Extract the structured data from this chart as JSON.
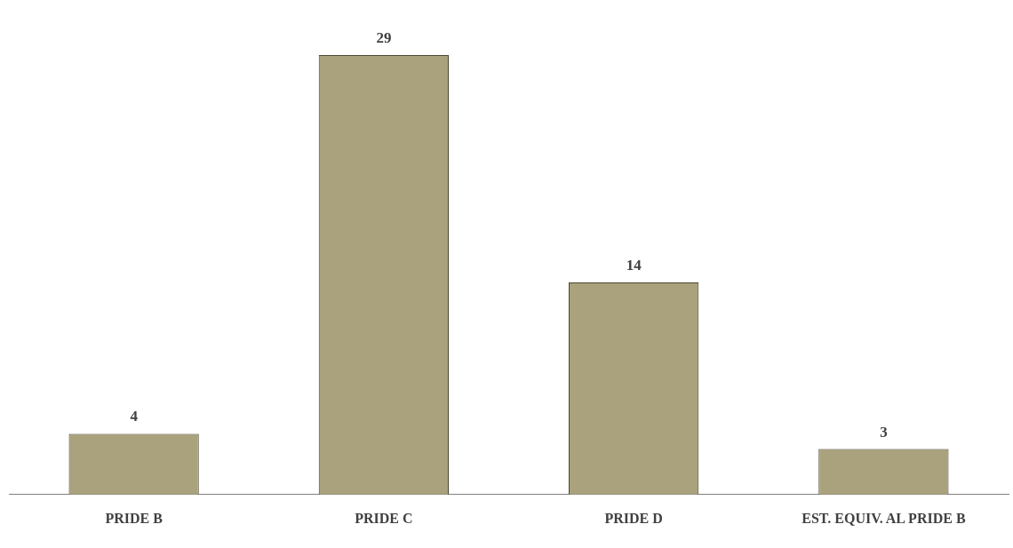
{
  "chart_data": {
    "type": "bar",
    "categories": [
      "PRIDE B",
      "PRIDE C",
      "PRIDE D",
      "EST. EQUIV. AL PRIDE B"
    ],
    "values": [
      4,
      29,
      14,
      3
    ],
    "color": "#aaa27c",
    "data_labels": true,
    "grid": false,
    "legend": false
  }
}
